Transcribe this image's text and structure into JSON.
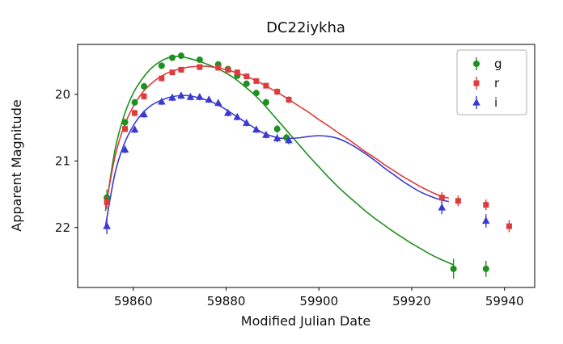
{
  "chart_data": {
    "type": "scatter",
    "title": "DC22iykha",
    "xlabel": "Modified Julian Date",
    "ylabel": "Apparent Magnitude",
    "xlim": [
      59848.0,
      59946.5
    ],
    "ylim": [
      19.25,
      22.9
    ],
    "y_axis_inverted": true,
    "grid": false,
    "legend_position": "upper right",
    "xticks": [
      59860,
      59880,
      59900,
      59920,
      59940
    ],
    "yticks": [
      20,
      21,
      22
    ],
    "series": [
      {
        "name": "g",
        "color": "#1f8f1f",
        "marker": "circle",
        "points": [
          [
            59854.3,
            21.55,
            0.12
          ],
          [
            59858.2,
            20.42,
            0.05
          ],
          [
            59860.3,
            20.12,
            0.05
          ],
          [
            59862.3,
            19.88,
            0.05
          ],
          [
            59866.1,
            19.57,
            0.04
          ],
          [
            59868.4,
            19.45,
            0.04
          ],
          [
            59870.3,
            19.42,
            0.04
          ],
          [
            59874.3,
            19.48,
            0.04
          ],
          [
            59878.3,
            19.55,
            0.04
          ],
          [
            59880.4,
            19.62,
            0.04
          ],
          [
            59882.4,
            19.72,
            0.04
          ],
          [
            59884.4,
            19.84,
            0.04
          ],
          [
            59886.5,
            19.98,
            0.05
          ],
          [
            59888.6,
            20.12,
            0.05
          ],
          [
            59891.0,
            20.52,
            0.06
          ],
          [
            59893.0,
            20.65,
            0.06
          ],
          [
            59929.0,
            22.62,
            0.15
          ],
          [
            59936.0,
            22.62,
            0.12
          ]
        ],
        "fit": [
          [
            59854,
            21.75
          ],
          [
            59856,
            20.85
          ],
          [
            59858,
            20.32
          ],
          [
            59860,
            19.98
          ],
          [
            59862,
            19.76
          ],
          [
            59864,
            19.6
          ],
          [
            59866,
            19.5
          ],
          [
            59868,
            19.44
          ],
          [
            59870,
            19.43
          ],
          [
            59872,
            19.46
          ],
          [
            59874,
            19.5
          ],
          [
            59876,
            19.55
          ],
          [
            59878,
            19.61
          ],
          [
            59880,
            19.68
          ],
          [
            59882,
            19.77
          ],
          [
            59884,
            19.88
          ],
          [
            59886,
            20.0
          ],
          [
            59888,
            20.14
          ],
          [
            59890,
            20.3
          ],
          [
            59892,
            20.46
          ],
          [
            59894,
            20.62
          ],
          [
            59896,
            20.78
          ],
          [
            59898,
            20.94
          ],
          [
            59900,
            21.09
          ],
          [
            59902,
            21.24
          ],
          [
            59904,
            21.38
          ],
          [
            59906,
            21.51
          ],
          [
            59908,
            21.63
          ],
          [
            59910,
            21.75
          ],
          [
            59912,
            21.86
          ],
          [
            59914,
            21.96
          ],
          [
            59916,
            22.06
          ],
          [
            59918,
            22.15
          ],
          [
            59920,
            22.24
          ],
          [
            59922,
            22.32
          ],
          [
            59924,
            22.4
          ],
          [
            59926,
            22.47
          ],
          [
            59928,
            22.53
          ],
          [
            59929,
            22.56
          ]
        ]
      },
      {
        "name": "r",
        "color": "#dd3c3c",
        "marker": "square",
        "points": [
          [
            59854.3,
            21.62,
            0.1
          ],
          [
            59858.2,
            20.52,
            0.05
          ],
          [
            59860.3,
            20.28,
            0.05
          ],
          [
            59862.3,
            20.03,
            0.05
          ],
          [
            59866.1,
            19.76,
            0.04
          ],
          [
            59868.4,
            19.67,
            0.04
          ],
          [
            59870.3,
            19.63,
            0.04
          ],
          [
            59874.3,
            19.59,
            0.04
          ],
          [
            59878.3,
            19.6,
            0.04
          ],
          [
            59880.4,
            19.63,
            0.04
          ],
          [
            59882.4,
            19.67,
            0.04
          ],
          [
            59884.4,
            19.73,
            0.04
          ],
          [
            59886.5,
            19.8,
            0.04
          ],
          [
            59888.6,
            19.87,
            0.04
          ],
          [
            59891.0,
            19.96,
            0.05
          ],
          [
            59893.5,
            20.08,
            0.05
          ],
          [
            59926.5,
            21.55,
            0.08
          ],
          [
            59930.0,
            21.6,
            0.08
          ],
          [
            59936.0,
            21.66,
            0.08
          ],
          [
            59941.0,
            21.98,
            0.09
          ]
        ],
        "fit": [
          [
            59854,
            21.7
          ],
          [
            59856,
            20.95
          ],
          [
            59858,
            20.48
          ],
          [
            59860,
            20.18
          ],
          [
            59862,
            19.97
          ],
          [
            59864,
            19.83
          ],
          [
            59866,
            19.73
          ],
          [
            59868,
            19.66
          ],
          [
            59870,
            19.62
          ],
          [
            59872,
            19.59
          ],
          [
            59874,
            19.58
          ],
          [
            59876,
            19.58
          ],
          [
            59878,
            19.6
          ],
          [
            59880,
            19.63
          ],
          [
            59882,
            19.67
          ],
          [
            59884,
            19.72
          ],
          [
            59886,
            19.78
          ],
          [
            59888,
            19.85
          ],
          [
            59890,
            19.93
          ],
          [
            59892,
            20.01
          ],
          [
            59894,
            20.1
          ],
          [
            59896,
            20.19
          ],
          [
            59898,
            20.28
          ],
          [
            59900,
            20.38
          ],
          [
            59902,
            20.47
          ],
          [
            59904,
            20.57
          ],
          [
            59906,
            20.66
          ],
          [
            59908,
            20.76
          ],
          [
            59910,
            20.86
          ],
          [
            59912,
            20.95
          ],
          [
            59914,
            21.05
          ],
          [
            59916,
            21.14
          ],
          [
            59918,
            21.23
          ],
          [
            59920,
            21.31
          ],
          [
            59922,
            21.39
          ],
          [
            59924,
            21.46
          ],
          [
            59926,
            21.52
          ],
          [
            59928,
            21.56
          ]
        ]
      },
      {
        "name": "i",
        "color": "#3a3ad1",
        "marker": "triangle",
        "points": [
          [
            59854.3,
            21.98,
            0.12
          ],
          [
            59858.2,
            20.83,
            0.06
          ],
          [
            59860.3,
            20.53,
            0.05
          ],
          [
            59862.3,
            20.3,
            0.05
          ],
          [
            59866.1,
            20.11,
            0.05
          ],
          [
            59868.4,
            20.05,
            0.05
          ],
          [
            59870.3,
            20.02,
            0.05
          ],
          [
            59872.3,
            20.04,
            0.05
          ],
          [
            59874.3,
            20.04,
            0.05
          ],
          [
            59876.3,
            20.08,
            0.05
          ],
          [
            59878.3,
            20.13,
            0.05
          ],
          [
            59880.4,
            20.28,
            0.05
          ],
          [
            59882.4,
            20.34,
            0.05
          ],
          [
            59884.4,
            20.43,
            0.05
          ],
          [
            59886.5,
            20.53,
            0.05
          ],
          [
            59888.6,
            20.61,
            0.05
          ],
          [
            59891.0,
            20.66,
            0.06
          ],
          [
            59893.5,
            20.69,
            0.06
          ],
          [
            59926.5,
            21.7,
            0.1
          ],
          [
            59936.0,
            21.9,
            0.1
          ]
        ],
        "fit": [
          [
            59854,
            21.98
          ],
          [
            59856,
            21.2
          ],
          [
            59858,
            20.75
          ],
          [
            59860,
            20.47
          ],
          [
            59862,
            20.28
          ],
          [
            59864,
            20.16
          ],
          [
            59866,
            20.09
          ],
          [
            59868,
            20.04
          ],
          [
            59870,
            20.02
          ],
          [
            59872,
            20.02
          ],
          [
            59874,
            20.05
          ],
          [
            59876,
            20.09
          ],
          [
            59878,
            20.15
          ],
          [
            59880,
            20.23
          ],
          [
            59882,
            20.32
          ],
          [
            59884,
            20.41
          ],
          [
            59886,
            20.5
          ],
          [
            59888,
            20.58
          ],
          [
            59890,
            20.63
          ],
          [
            59892,
            20.66
          ],
          [
            59894,
            20.66
          ],
          [
            59896,
            20.65
          ],
          [
            59898,
            20.63
          ],
          [
            59900,
            20.62
          ],
          [
            59902,
            20.63
          ],
          [
            59904,
            20.66
          ],
          [
            59906,
            20.72
          ],
          [
            59908,
            20.8
          ],
          [
            59910,
            20.89
          ],
          [
            59912,
            20.99
          ],
          [
            59914,
            21.1
          ],
          [
            59916,
            21.2
          ],
          [
            59918,
            21.3
          ],
          [
            59920,
            21.39
          ],
          [
            59922,
            21.47
          ],
          [
            59924,
            21.53
          ],
          [
            59926,
            21.58
          ],
          [
            59928,
            21.61
          ]
        ]
      }
    ]
  }
}
